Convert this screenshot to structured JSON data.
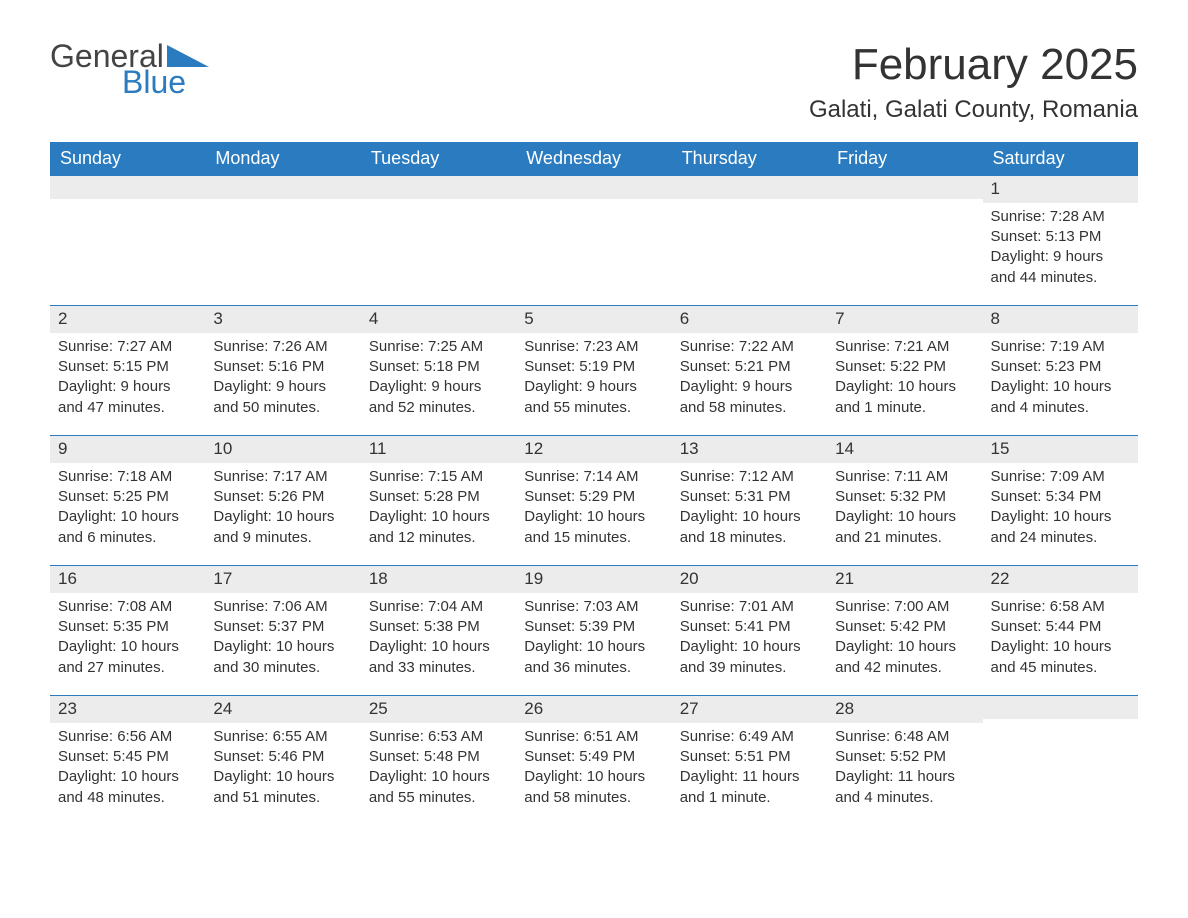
{
  "logo": {
    "general": "General",
    "blue": "Blue"
  },
  "title": "February 2025",
  "location": "Galati, Galati County, Romania",
  "colors": {
    "header_bg": "#2a7bbf",
    "header_text": "#ffffff",
    "daynum_bg": "#ececec",
    "day_border": "#2a7bbf",
    "text": "#333333",
    "background": "#ffffff"
  },
  "weekdays": [
    "Sunday",
    "Monday",
    "Tuesday",
    "Wednesday",
    "Thursday",
    "Friday",
    "Saturday"
  ],
  "first_day_index": 6,
  "days": [
    {
      "n": 1,
      "sunrise": "7:28 AM",
      "sunset": "5:13 PM",
      "daylight": "9 hours and 44 minutes."
    },
    {
      "n": 2,
      "sunrise": "7:27 AM",
      "sunset": "5:15 PM",
      "daylight": "9 hours and 47 minutes."
    },
    {
      "n": 3,
      "sunrise": "7:26 AM",
      "sunset": "5:16 PM",
      "daylight": "9 hours and 50 minutes."
    },
    {
      "n": 4,
      "sunrise": "7:25 AM",
      "sunset": "5:18 PM",
      "daylight": "9 hours and 52 minutes."
    },
    {
      "n": 5,
      "sunrise": "7:23 AM",
      "sunset": "5:19 PM",
      "daylight": "9 hours and 55 minutes."
    },
    {
      "n": 6,
      "sunrise": "7:22 AM",
      "sunset": "5:21 PM",
      "daylight": "9 hours and 58 minutes."
    },
    {
      "n": 7,
      "sunrise": "7:21 AM",
      "sunset": "5:22 PM",
      "daylight": "10 hours and 1 minute."
    },
    {
      "n": 8,
      "sunrise": "7:19 AM",
      "sunset": "5:23 PM",
      "daylight": "10 hours and 4 minutes."
    },
    {
      "n": 9,
      "sunrise": "7:18 AM",
      "sunset": "5:25 PM",
      "daylight": "10 hours and 6 minutes."
    },
    {
      "n": 10,
      "sunrise": "7:17 AM",
      "sunset": "5:26 PM",
      "daylight": "10 hours and 9 minutes."
    },
    {
      "n": 11,
      "sunrise": "7:15 AM",
      "sunset": "5:28 PM",
      "daylight": "10 hours and 12 minutes."
    },
    {
      "n": 12,
      "sunrise": "7:14 AM",
      "sunset": "5:29 PM",
      "daylight": "10 hours and 15 minutes."
    },
    {
      "n": 13,
      "sunrise": "7:12 AM",
      "sunset": "5:31 PM",
      "daylight": "10 hours and 18 minutes."
    },
    {
      "n": 14,
      "sunrise": "7:11 AM",
      "sunset": "5:32 PM",
      "daylight": "10 hours and 21 minutes."
    },
    {
      "n": 15,
      "sunrise": "7:09 AM",
      "sunset": "5:34 PM",
      "daylight": "10 hours and 24 minutes."
    },
    {
      "n": 16,
      "sunrise": "7:08 AM",
      "sunset": "5:35 PM",
      "daylight": "10 hours and 27 minutes."
    },
    {
      "n": 17,
      "sunrise": "7:06 AM",
      "sunset": "5:37 PM",
      "daylight": "10 hours and 30 minutes."
    },
    {
      "n": 18,
      "sunrise": "7:04 AM",
      "sunset": "5:38 PM",
      "daylight": "10 hours and 33 minutes."
    },
    {
      "n": 19,
      "sunrise": "7:03 AM",
      "sunset": "5:39 PM",
      "daylight": "10 hours and 36 minutes."
    },
    {
      "n": 20,
      "sunrise": "7:01 AM",
      "sunset": "5:41 PM",
      "daylight": "10 hours and 39 minutes."
    },
    {
      "n": 21,
      "sunrise": "7:00 AM",
      "sunset": "5:42 PM",
      "daylight": "10 hours and 42 minutes."
    },
    {
      "n": 22,
      "sunrise": "6:58 AM",
      "sunset": "5:44 PM",
      "daylight": "10 hours and 45 minutes."
    },
    {
      "n": 23,
      "sunrise": "6:56 AM",
      "sunset": "5:45 PM",
      "daylight": "10 hours and 48 minutes."
    },
    {
      "n": 24,
      "sunrise": "6:55 AM",
      "sunset": "5:46 PM",
      "daylight": "10 hours and 51 minutes."
    },
    {
      "n": 25,
      "sunrise": "6:53 AM",
      "sunset": "5:48 PM",
      "daylight": "10 hours and 55 minutes."
    },
    {
      "n": 26,
      "sunrise": "6:51 AM",
      "sunset": "5:49 PM",
      "daylight": "10 hours and 58 minutes."
    },
    {
      "n": 27,
      "sunrise": "6:49 AM",
      "sunset": "5:51 PM",
      "daylight": "11 hours and 1 minute."
    },
    {
      "n": 28,
      "sunrise": "6:48 AM",
      "sunset": "5:52 PM",
      "daylight": "11 hours and 4 minutes."
    }
  ],
  "labels": {
    "sunrise": "Sunrise:",
    "sunset": "Sunset:",
    "daylight": "Daylight:"
  }
}
